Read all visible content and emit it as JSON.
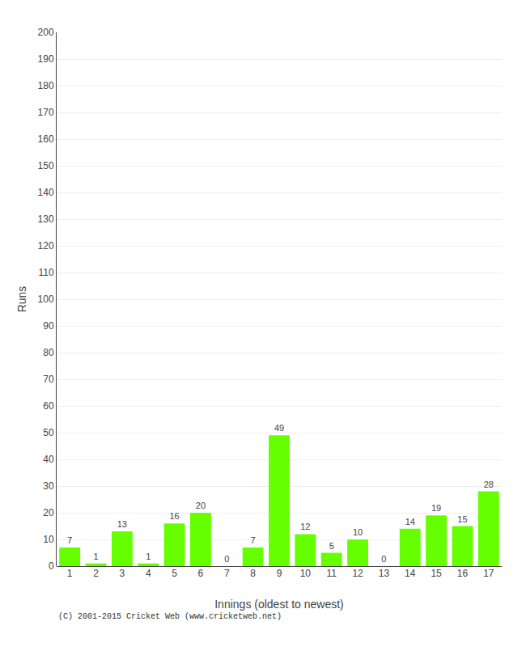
{
  "chart_data": {
    "type": "bar",
    "xlabel": "Innings (oldest to newest)",
    "ylabel": "Runs",
    "categories": [
      "1",
      "2",
      "3",
      "4",
      "5",
      "6",
      "7",
      "8",
      "9",
      "10",
      "11",
      "12",
      "13",
      "14",
      "15",
      "16",
      "17"
    ],
    "values": [
      7,
      1,
      13,
      1,
      16,
      20,
      0,
      7,
      49,
      12,
      5,
      10,
      0,
      14,
      19,
      15,
      28
    ],
    "color": "#66ff00",
    "ylim": [
      0,
      200
    ],
    "yticks": [
      0,
      10,
      20,
      30,
      40,
      50,
      60,
      70,
      80,
      90,
      100,
      110,
      120,
      130,
      140,
      150,
      160,
      170,
      180,
      190,
      200
    ],
    "grid": true,
    "data_labels": true,
    "annotations": [
      "(C) 2001-2015 Cricket Web (www.cricketweb.net)"
    ]
  }
}
